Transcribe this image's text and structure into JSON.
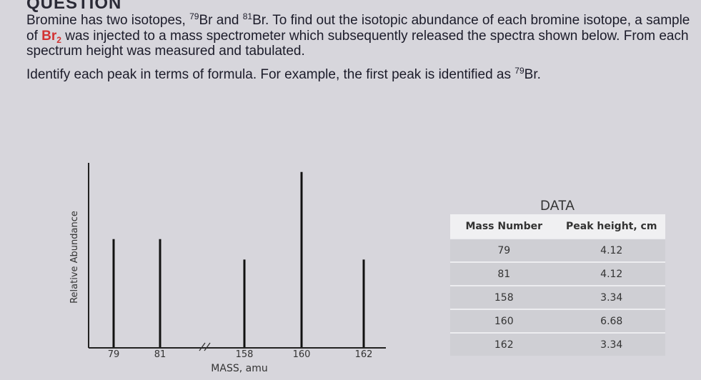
{
  "question": {
    "heading": "QUESTION",
    "paragraph_1": [
      "Bromine has two isotopes, ",
      "79",
      "Br and ",
      "81",
      "Br.  To find out the isotopic abundance of each bromine isotope, a sample of ",
      "Br",
      "2",
      " was injected to a mass spectrometer which subsequently released the spectra shown below.  From each spectrum height was measured and tabulated."
    ],
    "paragraph_2": [
      "Identify each peak in terms of formula.  For example, the first peak is identified as ",
      "79",
      "Br."
    ]
  },
  "chart_data": {
    "type": "bar",
    "y_label": "Relative Abundance",
    "x_label": "MASS, amu",
    "categories": [
      "79",
      "81",
      "158",
      "160",
      "162"
    ],
    "values": [
      4.12,
      4.12,
      3.34,
      6.68,
      3.34
    ],
    "ylim": [
      0,
      7
    ],
    "color": "#111111"
  },
  "table": {
    "title": "DATA",
    "header": [
      "Mass Number",
      "Peak height, cm"
    ],
    "rows": [
      [
        79,
        4.12
      ],
      [
        81,
        4.12
      ],
      [
        158,
        3.34
      ],
      [
        160,
        6.68
      ],
      [
        162,
        3.34
      ]
    ]
  }
}
